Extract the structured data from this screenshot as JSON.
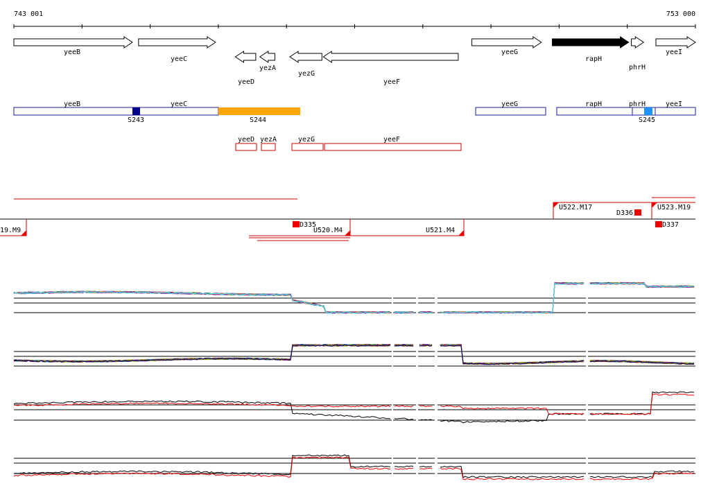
{
  "axis": {
    "start_label": "743 001",
    "end_label": "753 000",
    "start_bp": 743001,
    "end_bp": 753000
  },
  "genes": [
    {
      "name": "yeeB",
      "start": 743001,
      "end": 744740,
      "strand": "+"
    },
    {
      "name": "yeeC",
      "start": 744830,
      "end": 745960,
      "strand": "+"
    },
    {
      "name": "yeeD",
      "start": 746250,
      "end": 746550,
      "strand": "-"
    },
    {
      "name": "yezA",
      "start": 746610,
      "end": 746830,
      "strand": "-"
    },
    {
      "name": "yezG",
      "start": 747050,
      "end": 747520,
      "strand": "-"
    },
    {
      "name": "yeeF",
      "start": 747540,
      "end": 749520,
      "strand": "-"
    },
    {
      "name": "yeeG",
      "start": 749720,
      "end": 750740,
      "strand": "+"
    },
    {
      "name": "rapH",
      "start": 750900,
      "end": 752020,
      "strand": "+",
      "highlight": true
    },
    {
      "name": "phrH",
      "start": 752060,
      "end": 752240,
      "strand": "+"
    },
    {
      "name": "yeeI",
      "start": 752420,
      "end": 753000,
      "strand": "+"
    }
  ],
  "segments_labels": {
    "S243": "S243",
    "S244": "S244",
    "S245": "S245"
  },
  "upstream_labels": {
    "D335": "D335",
    "D336": "D336",
    "D337": "D337",
    "U519": "19.M9",
    "U520": "U520.M4",
    "U521": "U521.M4",
    "U522": "U522.M17",
    "U523": "U523.M19"
  },
  "colors": {
    "forward_gene": "#ffffff",
    "highlight_gene": "#000000",
    "segment_box": "#1a1aa0",
    "segment_orange": "#ffa500",
    "segment_navy": "#00008b",
    "segment_lightblue": "#1e90ff",
    "antisense_box": "#cc0000",
    "marker_red": "#ee0000"
  }
}
